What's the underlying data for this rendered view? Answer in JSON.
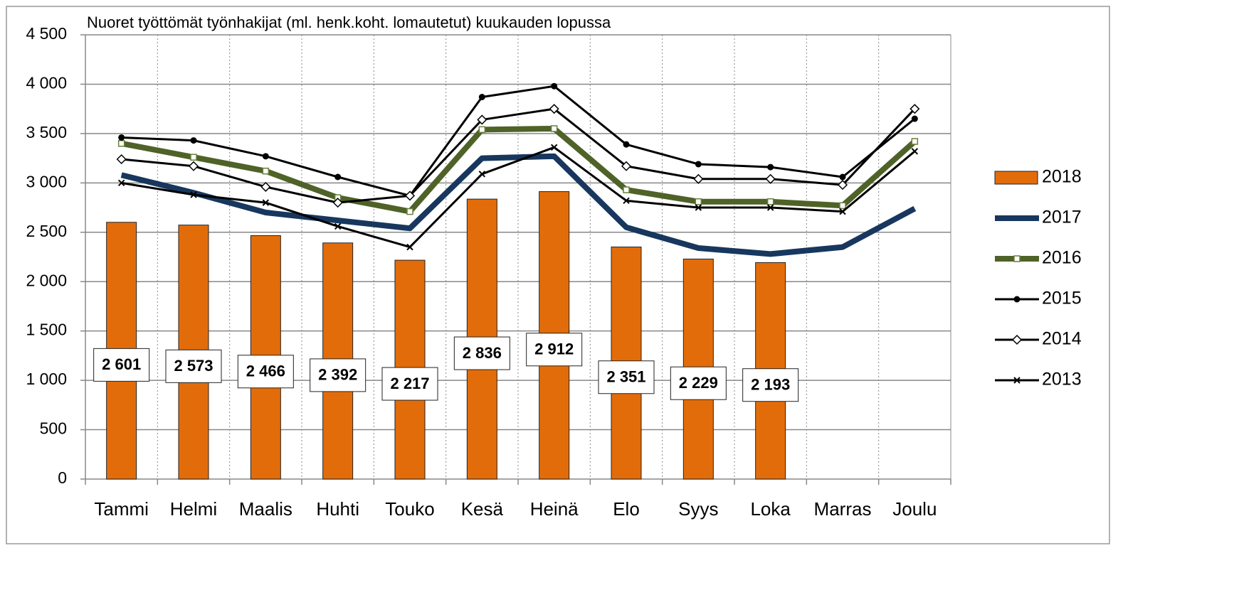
{
  "chart_data": {
    "type": "bar",
    "title": "Nuoret työttömät työnhakijat (ml. henk.koht. lomautetut) kuukauden lopussa",
    "categories": [
      "Tammi",
      "Helmi",
      "Maalis",
      "Huhti",
      "Touko",
      "Kesä",
      "Heinä",
      "Elo",
      "Syys",
      "Loka",
      "Marras",
      "Joulu"
    ],
    "ylim": [
      0,
      4500
    ],
    "yticks": [
      0,
      500,
      {
        "value": 1000,
        "label": "1 000"
      },
      {
        "value": 1500,
        "label": "1 500"
      },
      {
        "value": 2000,
        "label": "2 000"
      },
      {
        "value": 2500,
        "label": "2 500"
      },
      {
        "value": 3000,
        "label": "3 000"
      },
      {
        "value": 3500,
        "label": "3 500"
      },
      {
        "value": 4000,
        "label": "4 000"
      },
      {
        "value": 4500,
        "label": "4 500"
      }
    ],
    "grid": true,
    "legend": "right",
    "series": [
      {
        "name": "2018",
        "type": "bar",
        "color": "#e36c0a",
        "values": [
          2601,
          2573,
          2466,
          2392,
          2217,
          2836,
          2912,
          2351,
          2229,
          2193,
          null,
          null
        ],
        "value_labels": [
          "2 601",
          "2 573",
          "2 466",
          "2 392",
          "2 217",
          "2 836",
          "2 912",
          "2 351",
          "2 229",
          "2 193",
          null,
          null
        ]
      },
      {
        "name": "2017",
        "type": "line",
        "color": "#17375e",
        "line_width": 8,
        "marker": "none",
        "values": [
          3080,
          2900,
          2700,
          2620,
          2540,
          3250,
          3270,
          2550,
          2340,
          2280,
          2350,
          2740
        ]
      },
      {
        "name": "2016",
        "type": "line",
        "color": "#4f6228",
        "line_width": 8,
        "marker": "square",
        "values": [
          3400,
          3260,
          3120,
          2850,
          2710,
          3540,
          3550,
          2930,
          2810,
          2810,
          2770,
          3420
        ]
      },
      {
        "name": "2015",
        "type": "line",
        "color": "#000000",
        "line_width": 3,
        "marker": "circle",
        "values": [
          3460,
          3430,
          3270,
          3060,
          2870,
          3870,
          3980,
          3390,
          3190,
          3160,
          3060,
          3650
        ]
      },
      {
        "name": "2014",
        "type": "line",
        "color": "#000000",
        "line_width": 3,
        "marker": "diamond",
        "values": [
          3240,
          3170,
          2960,
          2800,
          2870,
          3640,
          3750,
          3170,
          3040,
          3040,
          2980,
          3750
        ]
      },
      {
        "name": "2013",
        "type": "line",
        "color": "#000000",
        "line_width": 3,
        "marker": "x",
        "values": [
          3000,
          2880,
          2800,
          2560,
          2350,
          3090,
          3360,
          2820,
          2750,
          2750,
          2710,
          3320
        ]
      }
    ]
  }
}
